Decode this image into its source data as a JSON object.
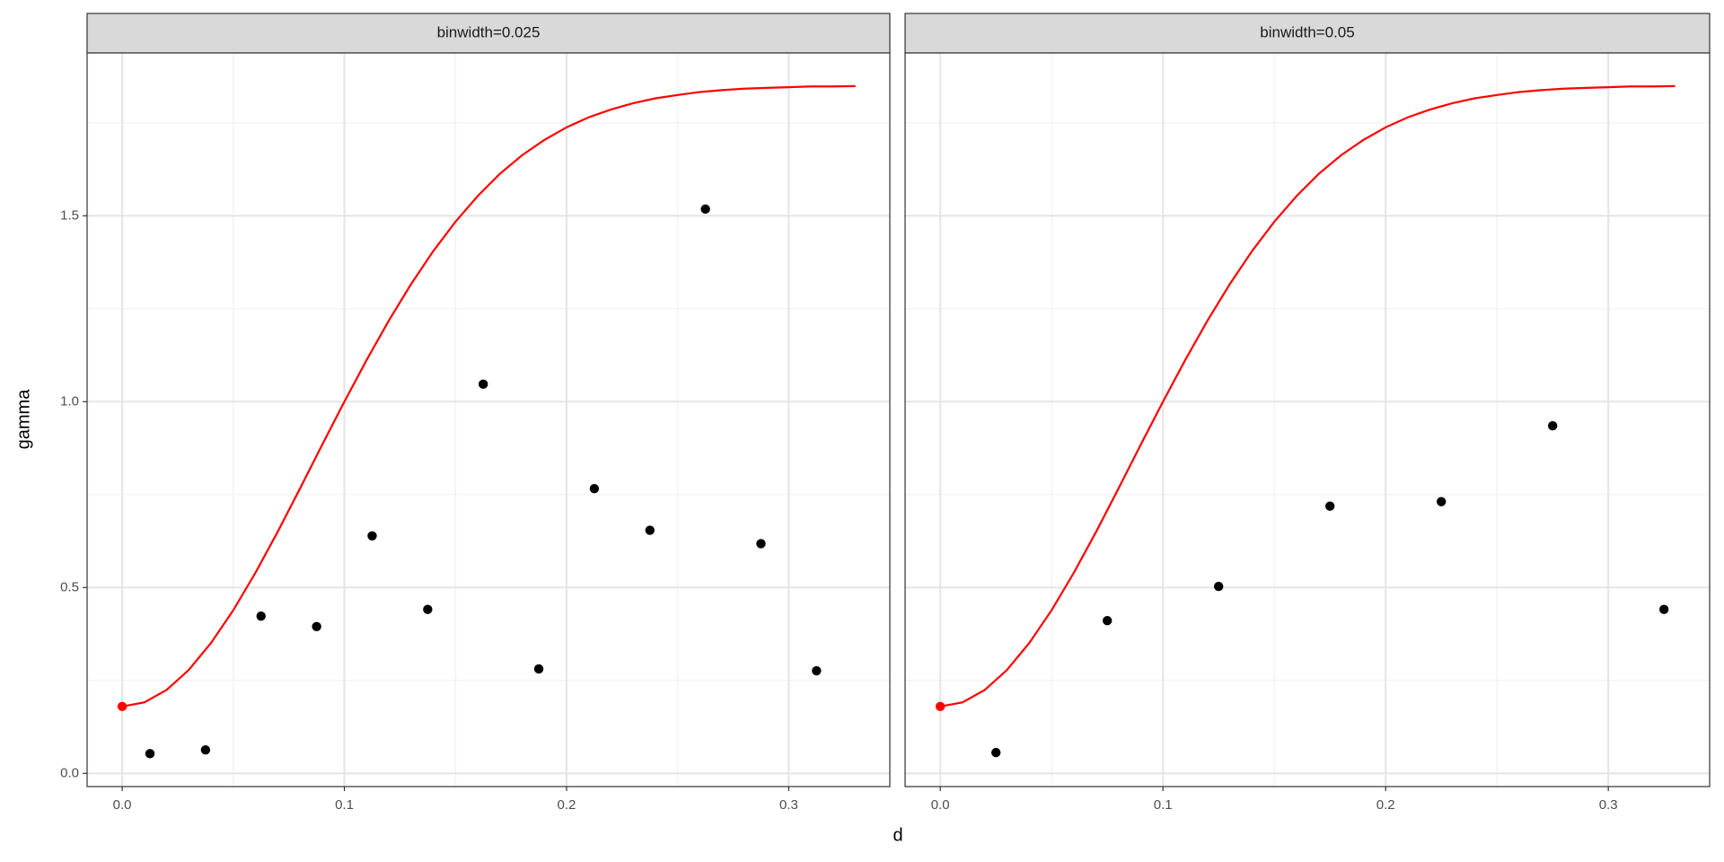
{
  "x_label": "d",
  "y_label": "gamma",
  "chart_data": [
    {
      "type": "scatter",
      "title": "binwidth=0.025",
      "xlim": [
        -0.0158,
        0.3455
      ],
      "ylim": [
        -0.0355,
        1.938
      ],
      "xticks": [
        {
          "value": 0,
          "label": "0.0"
        },
        0.1,
        0.2,
        0.3
      ],
      "yticks": [
        {
          "value": 0,
          "label": "0.0"
        },
        0.5,
        {
          "value": 1,
          "label": "1.0"
        },
        1.5
      ],
      "x_minor_grid": [
        0.05,
        0.15,
        0.25
      ],
      "y_minor_grid": [
        0.25,
        0.75,
        1.25,
        1.75
      ],
      "grid": true,
      "series": [
        {
          "mode": "points",
          "color": "#000000",
          "x": [
            0.0125,
            0.0375,
            0.0625,
            0.0875,
            0.1125,
            0.1375,
            0.1625,
            0.1875,
            0.2125,
            0.2375,
            0.2625,
            0.2875,
            0.3125
          ],
          "values": [
            0.053,
            0.063,
            0.423,
            0.395,
            0.639,
            0.441,
            1.047,
            0.281,
            0.766,
            0.654,
            1.518,
            0.618,
            0.276
          ]
        },
        {
          "mode": "line",
          "color": "#ff0000",
          "x": [
            0,
            0.01,
            0.02,
            0.03,
            0.04,
            0.05,
            0.06,
            0.07,
            0.08,
            0.09,
            0.1,
            0.11,
            0.12,
            0.13,
            0.14,
            0.15,
            0.16,
            0.17,
            0.18,
            0.19,
            0.2,
            0.21,
            0.22,
            0.23,
            0.24,
            0.25,
            0.26,
            0.27,
            0.28,
            0.29,
            0.3,
            0.31,
            0.32,
            0.33
          ],
          "values": [
            0.18,
            0.191,
            0.2245,
            0.2785,
            0.351,
            0.439,
            0.54,
            0.65,
            0.766,
            0.884,
            1.0,
            1.112,
            1.218,
            1.316,
            1.405,
            1.484,
            1.553,
            1.613,
            1.663,
            1.704,
            1.738,
            1.765,
            1.786,
            1.803,
            1.816,
            1.825,
            1.833,
            1.838,
            1.842,
            1.844,
            1.846,
            1.848,
            1.848,
            1.849
          ]
        },
        {
          "mode": "points",
          "color": "#ff0000",
          "x": [
            0
          ],
          "values": [
            0.18
          ]
        }
      ]
    },
    {
      "type": "scatter",
      "title": "binwidth=0.05",
      "xlim": [
        -0.0158,
        0.3455
      ],
      "ylim": [
        -0.0355,
        1.938
      ],
      "xticks": [
        {
          "value": 0,
          "label": "0.0"
        },
        0.1,
        0.2,
        0.3
      ],
      "yticks": [
        {
          "value": 0,
          "label": "0.0"
        },
        0.5,
        {
          "value": 1,
          "label": "1.0"
        },
        1.5
      ],
      "x_minor_grid": [
        0.05,
        0.15,
        0.25
      ],
      "y_minor_grid": [
        0.25,
        0.75,
        1.25,
        1.75
      ],
      "grid": true,
      "series": [
        {
          "mode": "points",
          "color": "#000000",
          "x": [
            0.025,
            0.075,
            0.125,
            0.175,
            0.225,
            0.275,
            0.325
          ],
          "values": [
            0.056,
            0.411,
            0.503,
            0.719,
            0.731,
            0.935,
            0.441
          ]
        },
        {
          "mode": "line",
          "color": "#ff0000",
          "x": [
            0,
            0.01,
            0.02,
            0.03,
            0.04,
            0.05,
            0.06,
            0.07,
            0.08,
            0.09,
            0.1,
            0.11,
            0.12,
            0.13,
            0.14,
            0.15,
            0.16,
            0.17,
            0.18,
            0.19,
            0.2,
            0.21,
            0.22,
            0.23,
            0.24,
            0.25,
            0.26,
            0.27,
            0.28,
            0.29,
            0.3,
            0.31,
            0.32,
            0.33
          ],
          "values": [
            0.18,
            0.191,
            0.2245,
            0.2785,
            0.351,
            0.439,
            0.54,
            0.65,
            0.766,
            0.884,
            1.0,
            1.112,
            1.218,
            1.316,
            1.405,
            1.484,
            1.553,
            1.613,
            1.663,
            1.704,
            1.738,
            1.765,
            1.786,
            1.803,
            1.816,
            1.825,
            1.833,
            1.838,
            1.842,
            1.844,
            1.846,
            1.848,
            1.848,
            1.849
          ]
        },
        {
          "mode": "points",
          "color": "#ff0000",
          "x": [
            0
          ],
          "values": [
            0.18
          ]
        }
      ]
    }
  ]
}
